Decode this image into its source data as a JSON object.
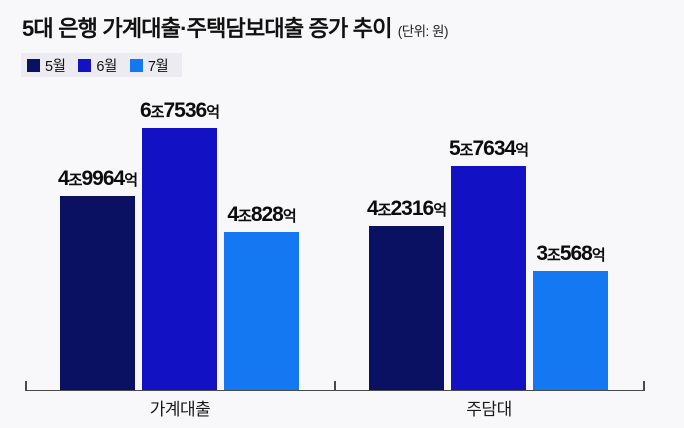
{
  "chart_data": {
    "type": "bar",
    "title": "5대 은행 가계대출·주택담보대출 증가 추이",
    "unit_label": "(단위: 원)",
    "categories": [
      "가계대출",
      "주담대"
    ],
    "series": [
      {
        "name": "5월",
        "color": "#0a1062",
        "values": [
          4.9964,
          4.2316
        ],
        "value_unit": "조 원",
        "data_label_parts": [
          [
            "4",
            "조",
            "9964",
            "억"
          ],
          [
            "4",
            "조",
            "2316",
            "억"
          ]
        ]
      },
      {
        "name": "6월",
        "color": "#1212c4",
        "values": [
          6.7536,
          5.7634
        ],
        "value_unit": "조 원",
        "data_label_parts": [
          [
            "6",
            "조",
            "7536",
            "억"
          ],
          [
            "5",
            "조",
            "7634",
            "억"
          ]
        ]
      },
      {
        "name": "7월",
        "color": "#1478f2",
        "values": [
          4.0828,
          3.0568
        ],
        "value_unit": "조 원",
        "data_label_parts": [
          [
            "4",
            "조",
            "828",
            "억"
          ],
          [
            "3",
            "조",
            "568",
            "억"
          ]
        ]
      }
    ],
    "ylim": [
      0,
      7.2
    ],
    "grid": false,
    "legend_position": "top-left",
    "background_color": "#f8f8fa",
    "legend_background_color": "#ebebf1"
  }
}
